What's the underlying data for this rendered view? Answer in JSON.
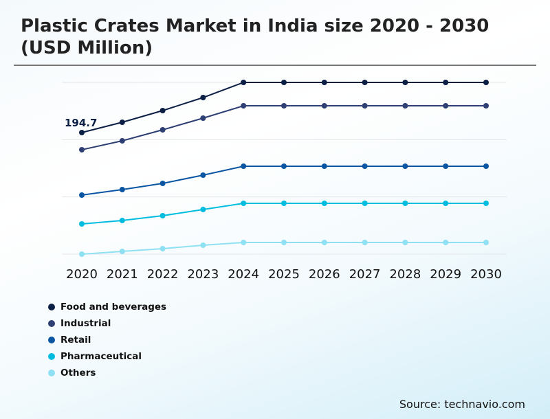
{
  "title": "Plastic Crates Market in India size 2020 - 2030 (USD Million)",
  "source": "Source: technavio.com",
  "chart_data": {
    "type": "line",
    "title": "Plastic Crates Market in India size 2020 - 2030 (USD Million)",
    "xlabel": "",
    "ylabel": "",
    "x": [
      "2020",
      "2021",
      "2022",
      "2023",
      "2024",
      "2025",
      "2026",
      "2027",
      "2028",
      "2029",
      "2030"
    ],
    "ylim": [
      0,
      275
    ],
    "grid": true,
    "legend_position": "bottom-left",
    "annotations": [
      {
        "series": "Food and beverages",
        "x": "2020",
        "label": "194.7"
      }
    ],
    "series": [
      {
        "name": "Food and beverages",
        "color": "#0b1f45",
        "values": [
          194.7,
          211.2,
          229.9,
          250.8,
          275,
          275,
          275,
          275,
          275,
          275,
          275
        ]
      },
      {
        "name": "Industrial",
        "color": "#2e3f73",
        "values": [
          167.2,
          181.5,
          199.1,
          217.8,
          237.6,
          237.6,
          237.6,
          237.6,
          237.6,
          237.6,
          237.6
        ]
      },
      {
        "name": "Retail",
        "color": "#0a56a3",
        "values": [
          94.6,
          103.4,
          113.3,
          126.5,
          140.8,
          140.8,
          140.8,
          140.8,
          140.8,
          140.8,
          140.8
        ]
      },
      {
        "name": "Pharmaceutical",
        "color": "#00bde0",
        "values": [
          48.4,
          53.9,
          61.6,
          71.5,
          81.4,
          81.4,
          81.4,
          81.4,
          81.4,
          81.4,
          81.4
        ]
      },
      {
        "name": "Others",
        "color": "#8ee0f2",
        "values": [
          0,
          4.4,
          8.8,
          14.3,
          18.7,
          18.7,
          18.7,
          18.7,
          18.7,
          18.7,
          18.7
        ]
      }
    ]
  }
}
